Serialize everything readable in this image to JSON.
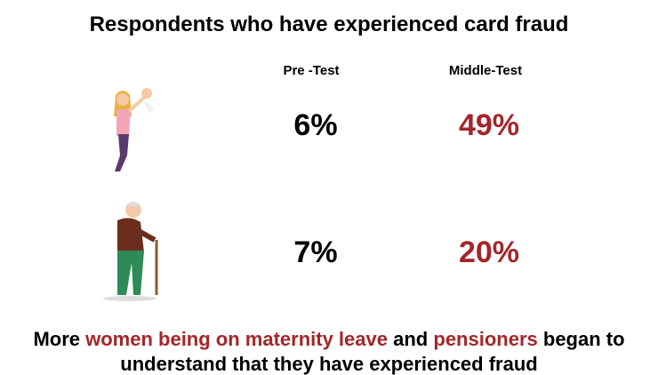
{
  "title": "Respondents who have experienced card fraud",
  "columns": [
    {
      "label": "Pre -Test",
      "color": "#000000"
    },
    {
      "label": "Middle-Test",
      "color": "#a3262a"
    }
  ],
  "rows": [
    {
      "group": "women on maternity leave",
      "values": [
        "6%",
        "49%"
      ]
    },
    {
      "group": "pensioners",
      "values": [
        "7%",
        "20%"
      ]
    }
  ],
  "footer": {
    "highlight_color": "#a3262a",
    "segments": [
      {
        "text": "More",
        "highlight": false
      },
      {
        "text": "women being on maternity leave",
        "highlight": true
      },
      {
        "text": "and",
        "highlight": false
      },
      {
        "text": "pensioners",
        "highlight": true
      },
      {
        "text": "began to understand that they have experienced fraud",
        "highlight": false
      }
    ]
  }
}
